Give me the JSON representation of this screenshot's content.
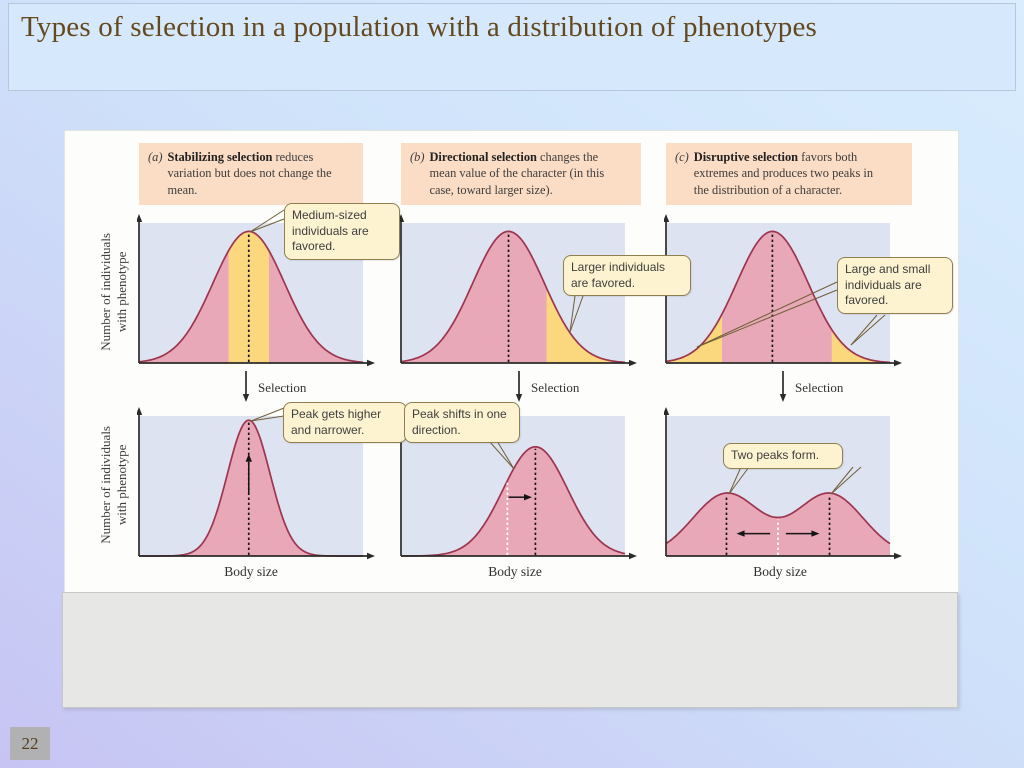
{
  "slide": {
    "title": "Types of selection in a population with a distribution of phenotypes",
    "page_number": "22"
  },
  "figure": {
    "selection_label": "Selection",
    "captions": [
      {
        "index": "(a)",
        "lead": "Stabilizing selection",
        "rest": " reduces variation but does not change the mean."
      },
      {
        "index": "(b)",
        "lead": "Directional selection",
        "rest": " changes the mean value of the character (in this case, toward larger size)."
      },
      {
        "index": "(c)",
        "lead": "Disruptive selection",
        "rest": " favors both extremes and produces two peaks in the distribution of a character."
      }
    ],
    "colors": {
      "plot_bg": "#dee3f1",
      "curve_fill": "#e9a8b7",
      "curve_stroke": "#9d3550",
      "favored_band": "#fbd87d",
      "caption_bg": "#fbdcc4",
      "callout_bg": "#fdf3d0",
      "callout_border": "#8f7f4e",
      "title_color": "#64491e",
      "leader": "#6f5f38"
    }
  },
  "chart_data": [
    {
      "panel": "stabilizing-before",
      "type": "area",
      "title": "Stabilizing selection — before selection",
      "means": [
        0.49
      ],
      "sigma": 0.16,
      "height": 0.94,
      "favored_bands": [
        [
          0.4,
          0.58
        ]
      ],
      "dashed_lines": [
        {
          "x": 0.49,
          "color": "black"
        }
      ],
      "arrows": [],
      "callout": "Medium-sized individuals are favored.",
      "xlabel": "",
      "ylabel": "Number of individuals with phenotype"
    },
    {
      "panel": "directional-before",
      "type": "area",
      "title": "Directional selection — before selection",
      "means": [
        0.48
      ],
      "sigma": 0.16,
      "height": 0.94,
      "favored_bands": [
        [
          0.65,
          1.0
        ]
      ],
      "dashed_lines": [
        {
          "x": 0.48,
          "color": "black"
        }
      ],
      "arrows": [],
      "callout": "Larger individuals are favored.",
      "xlabel": "",
      "ylabel": ""
    },
    {
      "panel": "disruptive-before",
      "type": "area",
      "title": "Disruptive selection — before selection",
      "means": [
        0.475
      ],
      "sigma": 0.16,
      "height": 0.94,
      "favored_bands": [
        [
          0.0,
          0.25
        ],
        [
          0.74,
          1.0
        ]
      ],
      "dashed_lines": [
        {
          "x": 0.475,
          "color": "black"
        }
      ],
      "arrows": [],
      "callout": "Large and small individuals are favored.",
      "xlabel": "",
      "ylabel": ""
    },
    {
      "panel": "stabilizing-after",
      "type": "area",
      "title": "Stabilizing selection — after selection",
      "means": [
        0.49
      ],
      "sigma": 0.095,
      "height": 0.97,
      "favored_bands": [],
      "dashed_lines": [
        {
          "x": 0.49,
          "color": "black"
        }
      ],
      "arrows": [
        {
          "x1": 0.49,
          "y1": 0.56,
          "x2": 0.49,
          "y2": 0.27
        }
      ],
      "callout": "Peak gets higher and narrower.",
      "xlabel": "Body size",
      "ylabel": "Number of individuals with phenotype"
    },
    {
      "panel": "directional-after",
      "type": "area",
      "title": "Directional selection — after selection (mean shifted toward larger size)",
      "means": [
        0.6
      ],
      "sigma": 0.145,
      "height": 0.78,
      "favored_bands": [],
      "dashed_lines": [
        {
          "x": 0.475,
          "color": "white"
        },
        {
          "x": 0.6,
          "color": "black"
        }
      ],
      "arrows": [
        {
          "x1": 0.48,
          "y1": 0.58,
          "x2": 0.585,
          "y2": 0.58
        }
      ],
      "callout": "Peak shifts in one direction.",
      "xlabel": "Body size",
      "ylabel": ""
    },
    {
      "panel": "disruptive-after",
      "type": "area",
      "title": "Disruptive selection — after selection (two peaks form)",
      "means": [
        0.27,
        0.73
      ],
      "sigma": 0.15,
      "height": 0.45,
      "favored_bands": [],
      "dashed_lines": [
        {
          "x": 0.27,
          "color": "black"
        },
        {
          "x": 0.5,
          "color": "white"
        },
        {
          "x": 0.73,
          "color": "black"
        }
      ],
      "arrows": [
        {
          "x1": 0.465,
          "y1": 0.84,
          "x2": 0.315,
          "y2": 0.84
        },
        {
          "x1": 0.535,
          "y1": 0.84,
          "x2": 0.685,
          "y2": 0.84
        }
      ],
      "callout": "Two peaks form.",
      "xlabel": "Body size",
      "ylabel": ""
    }
  ]
}
